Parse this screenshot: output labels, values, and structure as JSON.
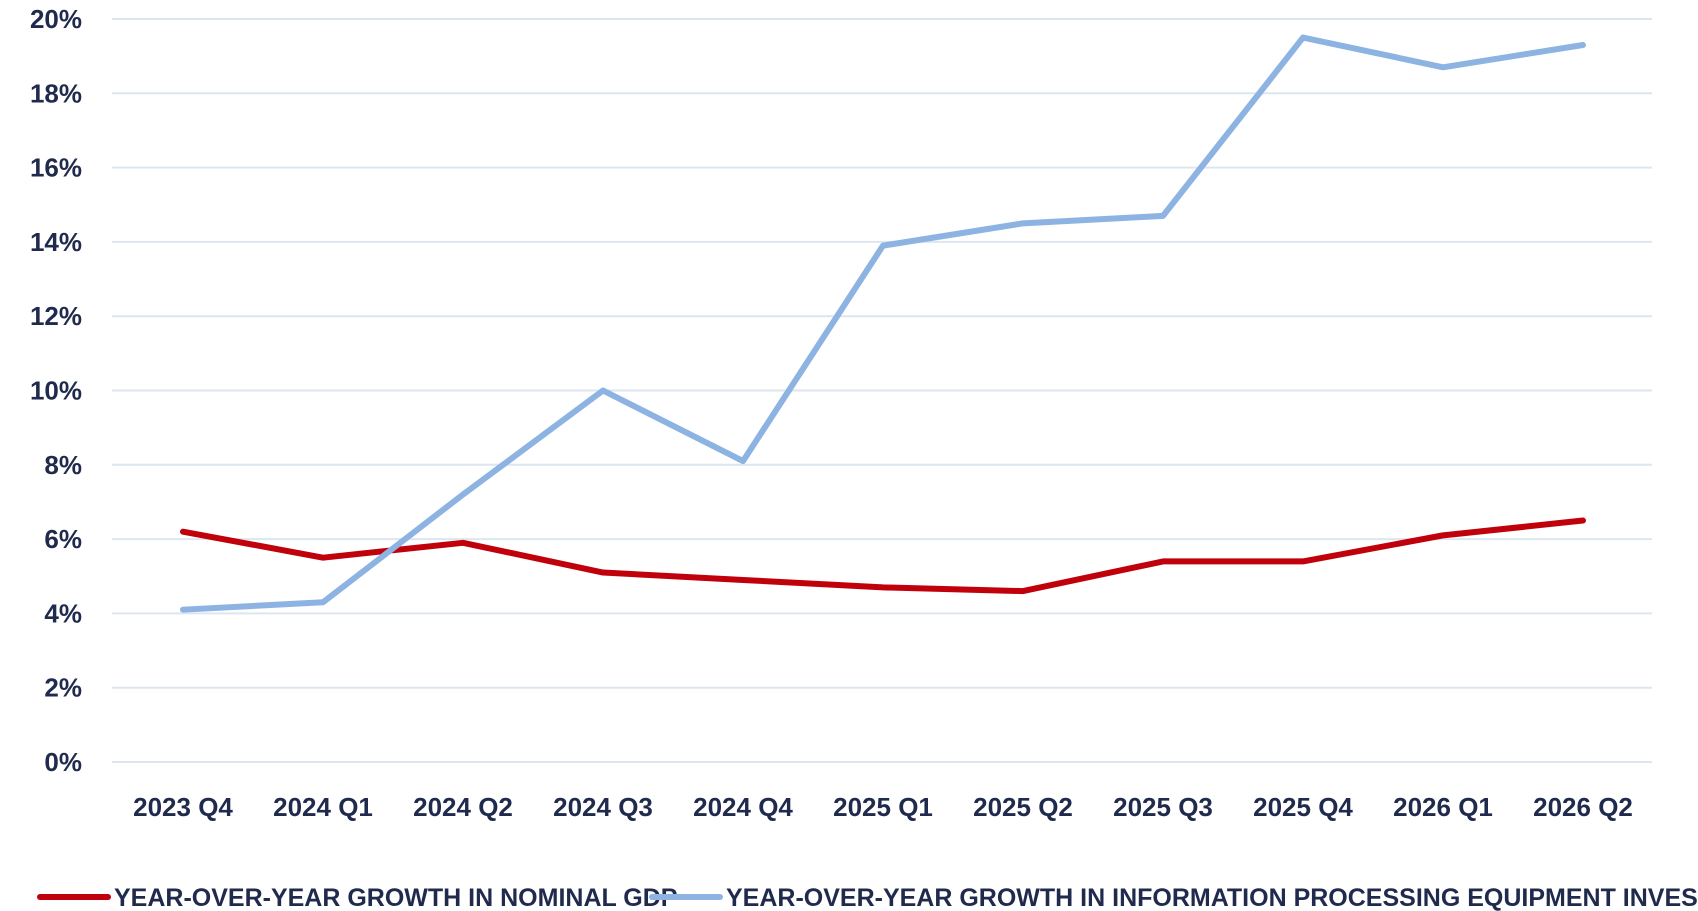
{
  "chart_data": {
    "type": "line",
    "categories": [
      "2023 Q4",
      "2024 Q1",
      "2024 Q2",
      "2024 Q3",
      "2024 Q4",
      "2025 Q1",
      "2025 Q2",
      "2025 Q3",
      "2025 Q4",
      "2026 Q1",
      "2026 Q2"
    ],
    "series": [
      {
        "name": "YEAR-OVER-YEAR GROWTH IN NOMINAL GDP",
        "color": "#c0000a",
        "values": [
          6.2,
          5.5,
          5.9,
          5.1,
          4.9,
          4.7,
          4.6,
          5.4,
          5.4,
          6.1,
          6.5
        ]
      },
      {
        "name": "YEAR-OVER-YEAR GROWTH IN INFORMATION PROCESSING EQUIPMENT INVESTMENT",
        "color": "#8db3e2",
        "values": [
          4.1,
          4.3,
          7.2,
          10.0,
          8.1,
          13.9,
          14.5,
          14.7,
          19.5,
          18.7,
          19.3
        ]
      }
    ],
    "ylim": [
      0,
      20
    ],
    "yticks": [
      0,
      2,
      4,
      6,
      8,
      10,
      12,
      14,
      16,
      18,
      20
    ],
    "ytick_labels": [
      "0%",
      "2%",
      "4%",
      "6%",
      "8%",
      "10%",
      "12%",
      "14%",
      "16%",
      "18%",
      "20%"
    ],
    "grid": true,
    "legend_position": "bottom",
    "title": "",
    "xlabel": "",
    "ylabel": ""
  }
}
